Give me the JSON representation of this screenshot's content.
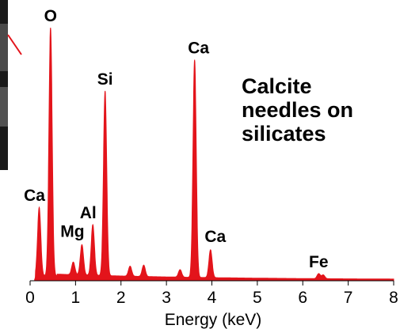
{
  "chart_data": {
    "type": "area",
    "title": "",
    "xlabel": "Energy (keV)",
    "ylabel": "",
    "xlim": [
      0,
      8
    ],
    "ylim": [
      0,
      100
    ],
    "grid": false,
    "legend": "none",
    "fill_color": "#e3141b",
    "x_ticks": [
      "0",
      "1",
      "2",
      "3",
      "4",
      "5",
      "6",
      "7",
      "8"
    ],
    "annotation": [
      "Calcite",
      "needles on",
      "silicates"
    ],
    "peaks": [
      {
        "label": "Ca",
        "energy": 0.2,
        "intensity": 27
      },
      {
        "label": "O",
        "energy": 0.45,
        "intensity": 98
      },
      {
        "label": "Mg",
        "energy": 1.14,
        "intensity": 12
      },
      {
        "label": "Al",
        "energy": 1.38,
        "intensity": 20
      },
      {
        "label": "Si",
        "energy": 1.65,
        "intensity": 73
      },
      {
        "label": "Ca",
        "energy": 3.62,
        "intensity": 86
      },
      {
        "label": "Ca",
        "energy": 3.97,
        "intensity": 11
      },
      {
        "label": "Fe",
        "energy": 6.35,
        "intensity": 2
      }
    ],
    "minor_peaks": [
      {
        "energy": 0.95,
        "intensity": 5
      },
      {
        "energy": 2.2,
        "intensity": 4
      },
      {
        "energy": 2.5,
        "intensity": 4.5
      },
      {
        "energy": 3.3,
        "intensity": 3
      },
      {
        "energy": 6.45,
        "intensity": 1.5
      }
    ]
  }
}
